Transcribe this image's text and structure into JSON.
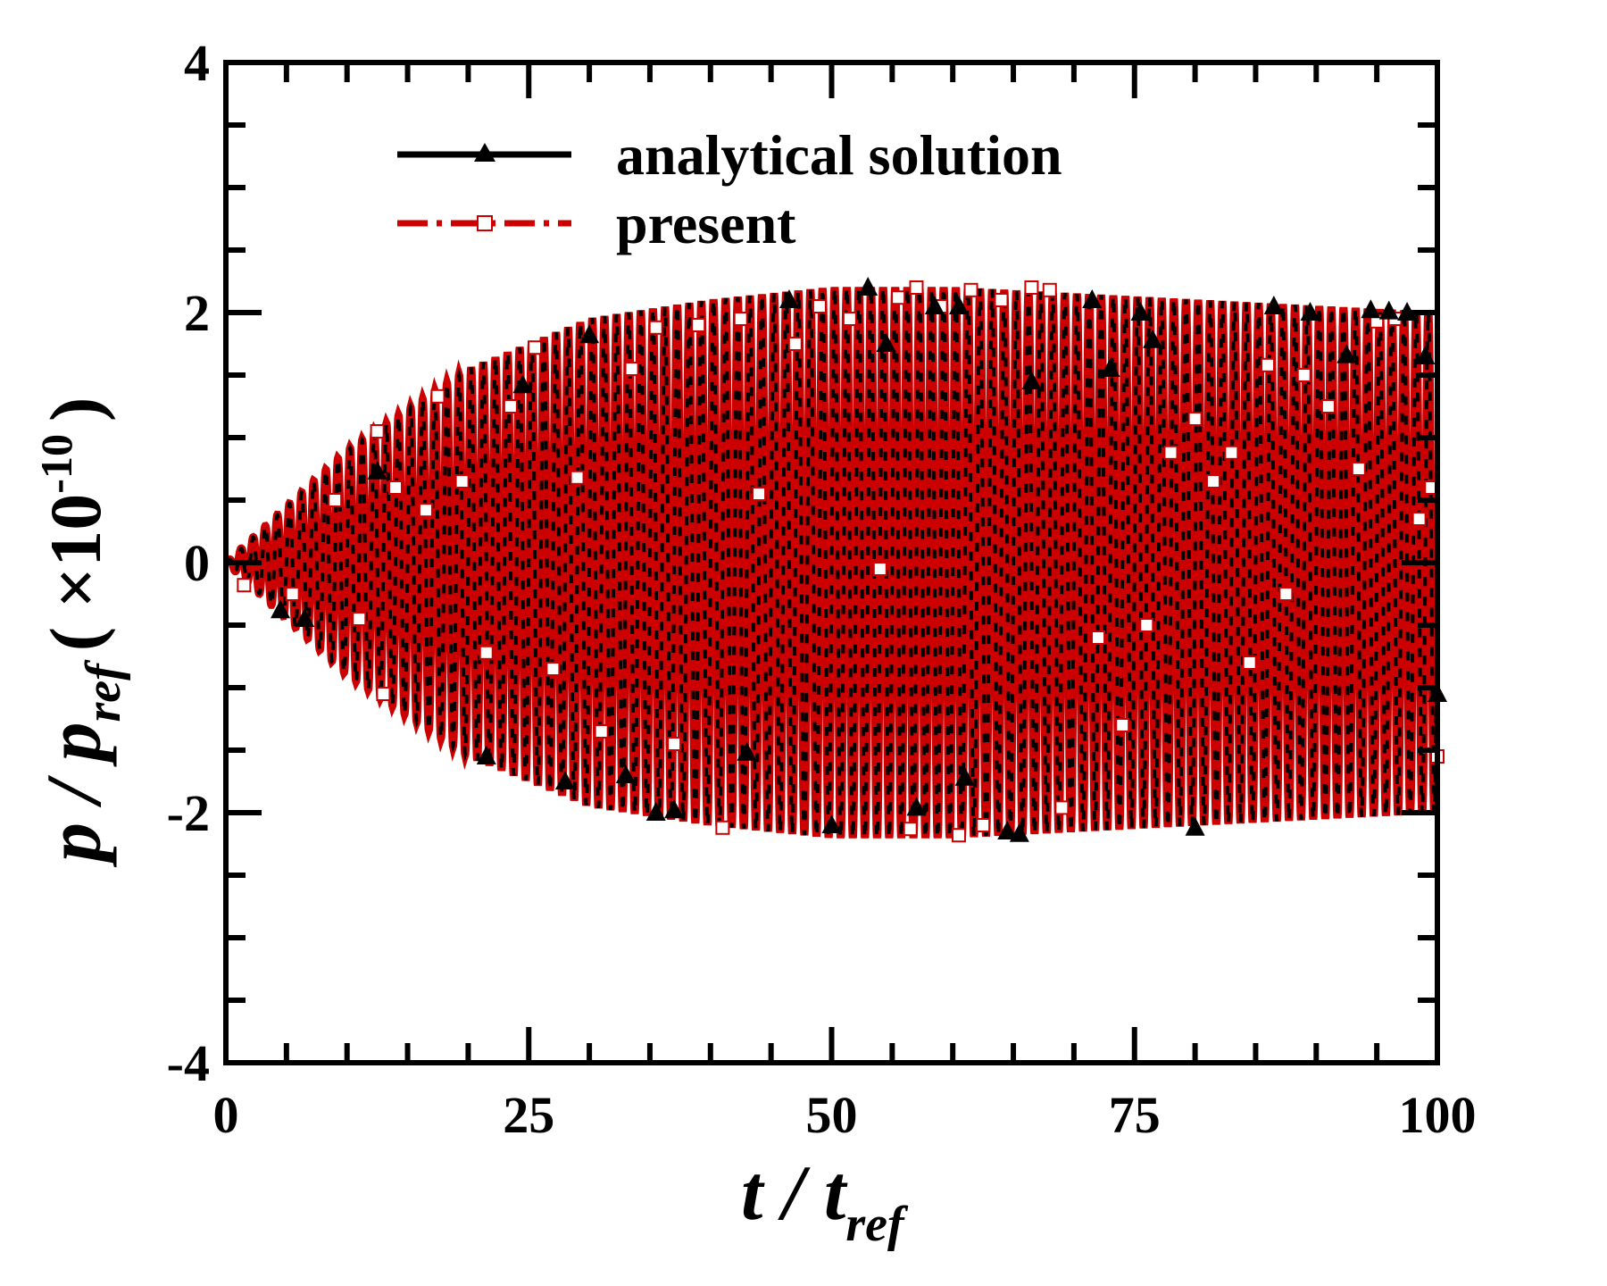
{
  "chart_data": {
    "type": "line",
    "xlabel": "t / t",
    "xlabel_sub": "ref",
    "ylabel": "p / p",
    "ylabel_sub": "ref",
    "ylabel_unit": "( ×10",
    "ylabel_exp": "-10",
    "ylabel_unit_close": ")",
    "xlim": [
      0,
      100
    ],
    "ylim": [
      -4,
      4
    ],
    "x_ticks": [
      0,
      25,
      50,
      75,
      100
    ],
    "x_tick_labels": [
      "0",
      "25",
      "50",
      "75",
      "100"
    ],
    "y_ticks": [
      -4,
      -2,
      0,
      2,
      4
    ],
    "y_tick_labels": [
      "-4",
      "-2",
      "0",
      "2",
      "4"
    ],
    "grid": false,
    "legend_position": "top",
    "signal": {
      "description_free": true,
      "period": 1.0,
      "envelope": [
        [
          0,
          0
        ],
        [
          10,
          0.9
        ],
        [
          20,
          1.55
        ],
        [
          30,
          1.95
        ],
        [
          40,
          2.1
        ],
        [
          50,
          2.2
        ],
        [
          60,
          2.2
        ],
        [
          70,
          2.15
        ],
        [
          80,
          2.1
        ],
        [
          90,
          2.05
        ],
        [
          100,
          2.0
        ]
      ]
    },
    "series": [
      {
        "name": "analytical solution",
        "color": "#000000",
        "line_style": "solid",
        "marker": "filled-triangle",
        "markers": [
          [
            4.5,
            -0.38
          ],
          [
            6.5,
            -0.45
          ],
          [
            12.5,
            0.73
          ],
          [
            21.5,
            -1.55
          ],
          [
            24.5,
            1.42
          ],
          [
            28,
            -1.75
          ],
          [
            30,
            1.82
          ],
          [
            33,
            -1.7
          ],
          [
            35.5,
            -2.0
          ],
          [
            37,
            -1.98
          ],
          [
            43,
            -1.52
          ],
          [
            46.5,
            2.1
          ],
          [
            50,
            -2.1
          ],
          [
            53,
            2.2
          ],
          [
            54.5,
            1.75
          ],
          [
            57,
            -1.96
          ],
          [
            58.5,
            2.05
          ],
          [
            60.5,
            2.05
          ],
          [
            61,
            -1.72
          ],
          [
            64.5,
            -2.15
          ],
          [
            65.5,
            -2.17
          ],
          [
            66.5,
            1.45
          ],
          [
            71.5,
            2.1
          ],
          [
            73,
            1.55
          ],
          [
            75.5,
            2.0
          ],
          [
            76.5,
            1.78
          ],
          [
            80,
            -2.12
          ],
          [
            86.5,
            2.05
          ],
          [
            89.5,
            2.0
          ],
          [
            92.5,
            1.66
          ],
          [
            94.5,
            2.02
          ],
          [
            96,
            2.01
          ],
          [
            97.5,
            2.0
          ],
          [
            99,
            1.65
          ],
          [
            100,
            -1.05
          ]
        ]
      },
      {
        "name": "present",
        "color": "#cc0000",
        "line_style": "dash-dot",
        "marker": "open-square",
        "markers": [
          [
            1.5,
            -0.18
          ],
          [
            5.5,
            -0.25
          ],
          [
            9,
            0.5
          ],
          [
            11,
            -0.45
          ],
          [
            12.5,
            1.05
          ],
          [
            13,
            -1.05
          ],
          [
            14,
            0.6
          ],
          [
            16.5,
            0.42
          ],
          [
            17.5,
            1.33
          ],
          [
            19.5,
            0.65
          ],
          [
            21.5,
            -0.72
          ],
          [
            23.5,
            1.25
          ],
          [
            25.5,
            1.72
          ],
          [
            27,
            -0.85
          ],
          [
            29,
            0.68
          ],
          [
            31,
            -1.35
          ],
          [
            33.5,
            1.55
          ],
          [
            35.5,
            1.88
          ],
          [
            37,
            -1.45
          ],
          [
            39,
            1.9
          ],
          [
            41,
            -2.12
          ],
          [
            42.5,
            1.95
          ],
          [
            44,
            0.55
          ],
          [
            47,
            1.75
          ],
          [
            49,
            2.05
          ],
          [
            51.5,
            1.95
          ],
          [
            54,
            -0.05
          ],
          [
            55.5,
            2.12
          ],
          [
            56.5,
            -2.13
          ],
          [
            57,
            2.2
          ],
          [
            59,
            2.05
          ],
          [
            60.5,
            -2.18
          ],
          [
            61.5,
            2.18
          ],
          [
            62.5,
            -2.1
          ],
          [
            64,
            2.1
          ],
          [
            66.5,
            2.2
          ],
          [
            68,
            2.18
          ],
          [
            69,
            -1.96
          ],
          [
            72,
            -0.6
          ],
          [
            74,
            -1.3
          ],
          [
            76,
            -0.5
          ],
          [
            78,
            0.88
          ],
          [
            80,
            1.15
          ],
          [
            81.5,
            0.65
          ],
          [
            83,
            0.88
          ],
          [
            84.5,
            -0.8
          ],
          [
            86,
            1.58
          ],
          [
            87.5,
            -0.25
          ],
          [
            89,
            1.5
          ],
          [
            91,
            1.25
          ],
          [
            93.5,
            0.75
          ],
          [
            95,
            1.93
          ],
          [
            96.5,
            1.95
          ],
          [
            98.5,
            0.35
          ],
          [
            99.5,
            0.6
          ],
          [
            100,
            -1.55
          ]
        ]
      }
    ]
  }
}
